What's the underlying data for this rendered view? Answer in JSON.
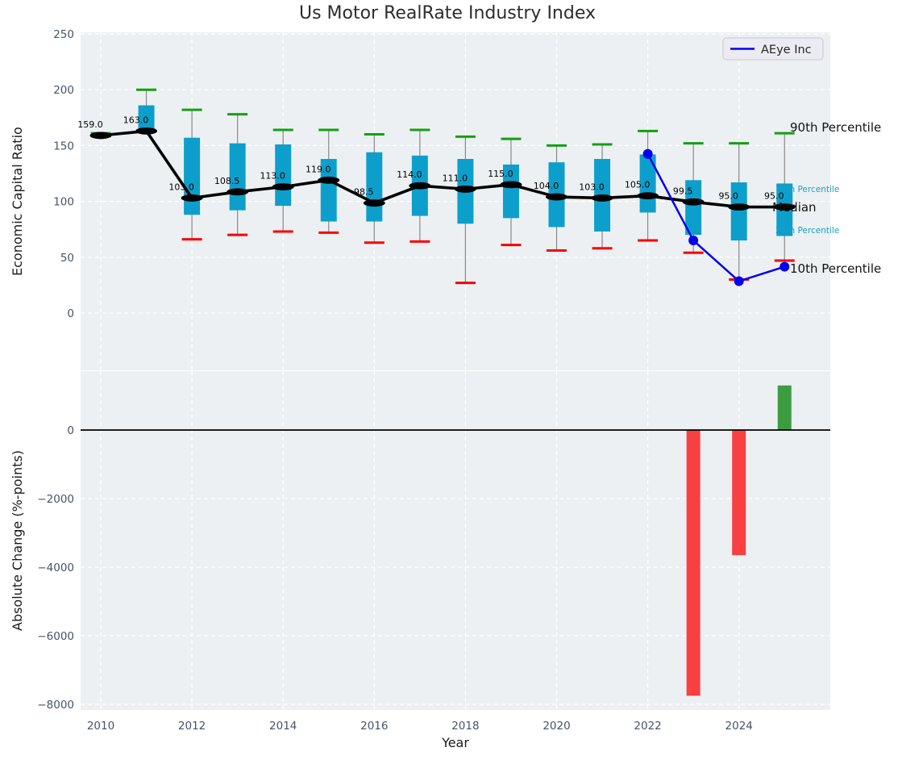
{
  "title": "Us Motor RealRate Industry Index",
  "legend": {
    "entries": [
      {
        "label": "AEye Inc",
        "color": "#0000f0"
      }
    ]
  },
  "colors": {
    "panel_bg": "#edf0f2",
    "grid": "#ffffff",
    "box_fill": "#0d9fcc",
    "whisker": "#888888",
    "cap_90th": "#12a012",
    "cap_10th": "#fb0000",
    "median": "#000000",
    "company_line": "#0000f0",
    "bar_negative": "#f84043",
    "bar_positive": "#3d9c40",
    "tick_label": "#44546a",
    "percentile_label_accent": "#16a0c6"
  },
  "chart_data": [
    {
      "type": "boxplot-line",
      "title": "Us Motor RealRate Industry Index",
      "ylabel": "Economic Capital Ratio",
      "ylim": [
        -51,
        251
      ],
      "yticks": [
        0,
        50,
        100,
        150,
        200,
        250
      ],
      "xticks": [
        2010,
        2012,
        2014,
        2016,
        2018,
        2020,
        2022,
        2024
      ],
      "grid": true,
      "legend_position": "upper right",
      "years": [
        2010,
        2011,
        2012,
        2013,
        2014,
        2015,
        2016,
        2017,
        2018,
        2019,
        2020,
        2021,
        2022,
        2023,
        2024,
        2025
      ],
      "percentiles": {
        "p90": [
          161,
          200,
          182,
          178,
          164,
          164,
          160,
          164,
          158,
          156,
          150,
          151,
          163,
          152,
          152,
          161
        ],
        "p75": [
          159.5,
          186,
          157,
          152,
          151,
          138,
          144,
          141,
          138,
          133,
          135,
          138,
          142,
          119,
          117,
          116
        ],
        "median": [
          159,
          163,
          103,
          108.5,
          113,
          119,
          98.5,
          114,
          111,
          115,
          104,
          103,
          105,
          99.5,
          95,
          95
        ],
        "p25": [
          158.5,
          163,
          88,
          92,
          96,
          82,
          82,
          87,
          80,
          85,
          77,
          73,
          90,
          70,
          65,
          69
        ],
        "p10": [
          158.5,
          163,
          66,
          70,
          73,
          72,
          63,
          64,
          27,
          61,
          56,
          58,
          65,
          54,
          30,
          47
        ]
      },
      "median_annotations": [
        "159.0",
        "163.0",
        "103.0",
        "108.5",
        "113.0",
        "119.0",
        "98.5",
        "114.0",
        "111.0",
        "115.0",
        "104.0",
        "103.0",
        "105.0",
        "99.5",
        "95.0",
        "95.0"
      ],
      "right_labels": [
        "90th Percentile",
        "75th Percentile",
        "Median",
        "25th Percentile",
        "10th Percentile"
      ],
      "series": [
        {
          "name": "AEye Inc",
          "x": [
            2022,
            2023,
            2024,
            2025
          ],
          "values": [
            142.5,
            65,
            28.5,
            41.5
          ]
        }
      ]
    },
    {
      "type": "bar",
      "xlabel": "Year",
      "ylabel": "Absolute Change (%-points)",
      "ylim": [
        -8200,
        1700
      ],
      "yticks": [
        0,
        -2000,
        -4000,
        -6000,
        -8000
      ],
      "xticks": [
        2010,
        2012,
        2014,
        2016,
        2018,
        2020,
        2022,
        2024
      ],
      "grid": true,
      "x": [
        2023,
        2024,
        2025
      ],
      "values": [
        -7750,
        -3650,
        1300
      ],
      "bar_colors": [
        "negative",
        "negative",
        "positive"
      ]
    }
  ]
}
